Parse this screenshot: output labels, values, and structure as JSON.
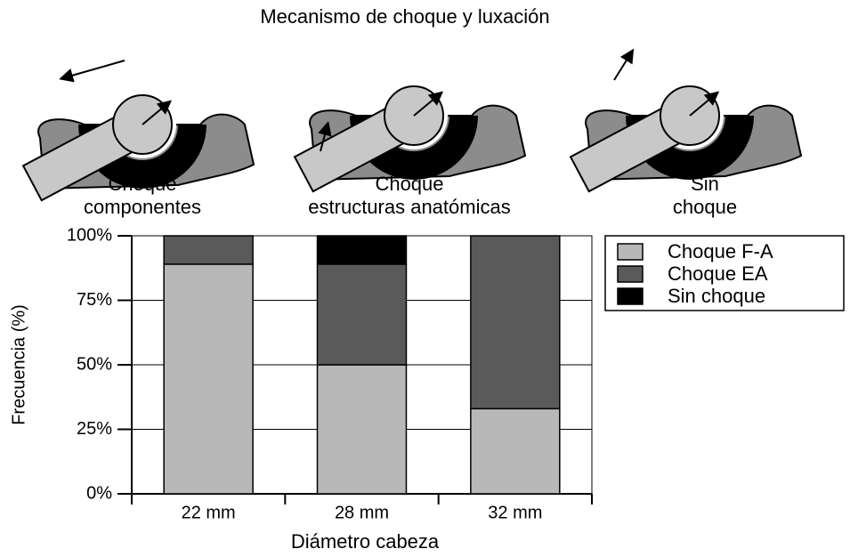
{
  "illustration": {
    "title": "Mecanismo de choque y luxación",
    "panels": [
      {
        "caption": [
          "Choque",
          "componentes"
        ]
      },
      {
        "caption": [
          "Choque",
          "estructuras anatómicas"
        ]
      },
      {
        "caption": [
          "Sin",
          "choque"
        ]
      }
    ]
  },
  "chart_data": {
    "type": "stacked_bar",
    "categories": [
      "22 mm",
      "28 mm",
      "32 mm"
    ],
    "series": [
      {
        "name": "Choque F-A",
        "color": "#b8b8b8",
        "values": [
          89,
          50,
          33
        ]
      },
      {
        "name": "Choque EA",
        "color": "#5a5a5a",
        "values": [
          11,
          39,
          67
        ]
      },
      {
        "name": "Sin choque",
        "color": "#000000",
        "values": [
          0,
          11,
          0
        ]
      }
    ],
    "ylim": [
      0,
      100
    ],
    "yticks": [
      {
        "value": 0,
        "label": "0%"
      },
      {
        "value": 25,
        "label": "25%"
      },
      {
        "value": 50,
        "label": "50%"
      },
      {
        "value": 75,
        "label": "75%"
      },
      {
        "value": 100,
        "label": "100%"
      }
    ],
    "y_label": "Frecuencia (%)",
    "x_label": "Diámetro cabeza",
    "grid": true,
    "legend": "right"
  }
}
